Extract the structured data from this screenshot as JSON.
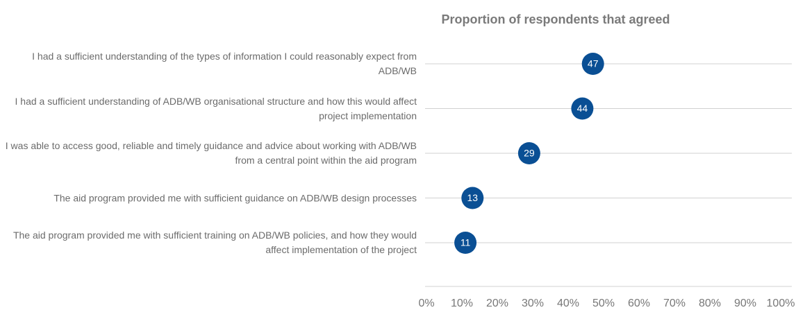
{
  "chart_data": {
    "type": "dot",
    "title": "Proportion of respondents that agreed",
    "categories": [
      "I had a sufficient understanding of the types of information I could reasonably expect from ADB/WB",
      "I had a sufficient understanding of ADB/WB organisational structure and how this would affect project implementation",
      "I was able to access good, reliable and timely guidance and advice about working with ADB/WB from a central point within the aid program",
      "The aid program provided me with sufficient guidance on ADB/WB design processes",
      "The aid program provided me with sufficient training on ADB/WB policies, and how they would affect implementation of the project"
    ],
    "values": [
      47,
      44,
      29,
      13,
      11
    ],
    "color": "#0a4f94",
    "xlim": [
      0,
      100
    ],
    "xticks": [
      {
        "value": 0,
        "label": "0%"
      },
      {
        "value": 10,
        "label": "10%"
      },
      {
        "value": 20,
        "label": "20%"
      },
      {
        "value": 30,
        "label": "30%"
      },
      {
        "value": 40,
        "label": "40%"
      },
      {
        "value": 50,
        "label": "50%"
      },
      {
        "value": 60,
        "label": "60%"
      },
      {
        "value": 70,
        "label": "70%"
      },
      {
        "value": 80,
        "label": "80%"
      },
      {
        "value": 90,
        "label": "90%"
      },
      {
        "value": 100,
        "label": "100%"
      }
    ]
  }
}
